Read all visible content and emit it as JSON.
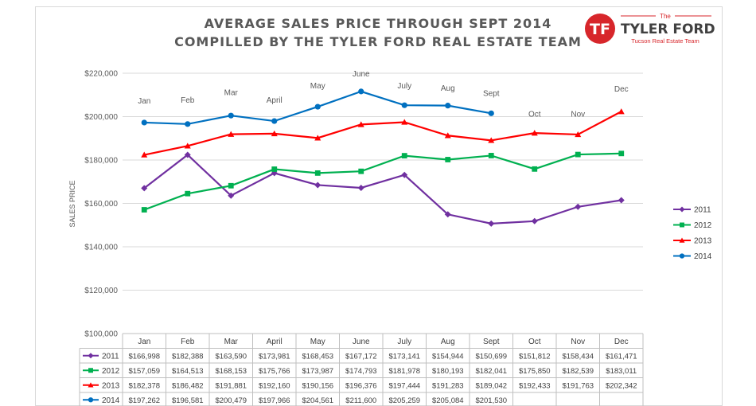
{
  "header": {
    "title_line1": "AVERAGE SALES PRICE THROUGH SEPT 2014",
    "title_line2": "COMPILLED BY THE TYLER FORD REAL ESTATE TEAM"
  },
  "logo": {
    "small_text": "The",
    "brand": "TYLER FORD",
    "tagline": "Tucson Real Estate Team",
    "mark": "TF",
    "color": "#d7262b"
  },
  "chart_data": {
    "type": "line",
    "title": "AVERAGE SALES PRICE THROUGH SEPT 2014",
    "ylabel": "SALES PRICE",
    "ylim": [
      100000,
      220000
    ],
    "yticks": [
      100000,
      120000,
      140000,
      160000,
      180000,
      200000,
      220000
    ],
    "ytick_labels": [
      "$100,000",
      "$120,000",
      "$140,000",
      "$160,000",
      "$180,000",
      "$200,000",
      "$220,000"
    ],
    "categories": [
      "Jan",
      "Feb",
      "Mar",
      "April",
      "May",
      "June",
      "July",
      "Aug",
      "Sept",
      "Oct",
      "Nov",
      "Dec"
    ],
    "grid": true,
    "legend_position": "right",
    "series": [
      {
        "name": "2011",
        "color": "#7030a0",
        "marker": "diamond",
        "values": [
          166998,
          182388,
          163590,
          173981,
          168453,
          167172,
          173141,
          154944,
          150699,
          151812,
          158434,
          161471
        ],
        "labels": [
          "$166,998",
          "$182,388",
          "$163,590",
          "$173,981",
          "$168,453",
          "$167,172",
          "$173,141",
          "$154,944",
          "$150,699",
          "$151,812",
          "$158,434",
          "$161,471"
        ]
      },
      {
        "name": "2012",
        "color": "#00b050",
        "marker": "square",
        "values": [
          157059,
          164513,
          168153,
          175766,
          173987,
          174793,
          181978,
          180193,
          182041,
          175850,
          182539,
          183011
        ],
        "labels": [
          "$157,059",
          "$164,513",
          "$168,153",
          "$175,766",
          "$173,987",
          "$174,793",
          "$181,978",
          "$180,193",
          "$182,041",
          "$175,850",
          "$182,539",
          "$183,011"
        ]
      },
      {
        "name": "2013",
        "color": "#ff0000",
        "marker": "triangle",
        "values": [
          182378,
          186482,
          191881,
          192160,
          190156,
          196376,
          197444,
          191283,
          189042,
          192433,
          191763,
          202342
        ],
        "labels": [
          "$182,378",
          "$186,482",
          "$191,881",
          "$192,160",
          "$190,156",
          "$196,376",
          "$197,444",
          "$191,283",
          "$189,042",
          "$192,433",
          "$191,763",
          "$202,342"
        ]
      },
      {
        "name": "2014",
        "color": "#0070c0",
        "marker": "circle",
        "values": [
          197262,
          196581,
          200479,
          197966,
          204561,
          211600,
          205259,
          205084,
          201530,
          null,
          null,
          null
        ],
        "labels": [
          "$197,262",
          "$196,581",
          "$200,479",
          "$197,966",
          "$204,561",
          "$211,600",
          "$205,259",
          "$205,084",
          "$201,530",
          "",
          "",
          ""
        ]
      }
    ],
    "annotations": [
      {
        "text": "Jan",
        "category": "Jan",
        "value": 206000
      },
      {
        "text": "Feb",
        "category": "Feb",
        "value": 206500
      },
      {
        "text": "Mar",
        "category": "Mar",
        "value": 210000
      },
      {
        "text": "April",
        "category": "April",
        "value": 206500
      },
      {
        "text": "May",
        "category": "May",
        "value": 213000
      },
      {
        "text": "June",
        "category": "June",
        "value": 218500
      },
      {
        "text": "July",
        "category": "July",
        "value": 213000
      },
      {
        "text": "Aug",
        "category": "Aug",
        "value": 212000
      },
      {
        "text": "Sept",
        "category": "Sept",
        "value": 209500
      },
      {
        "text": "Oct",
        "category": "Oct",
        "value": 200000
      },
      {
        "text": "Nov",
        "category": "Nov",
        "value": 200000
      },
      {
        "text": "Dec",
        "category": "Dec",
        "value": 211500
      }
    ]
  }
}
